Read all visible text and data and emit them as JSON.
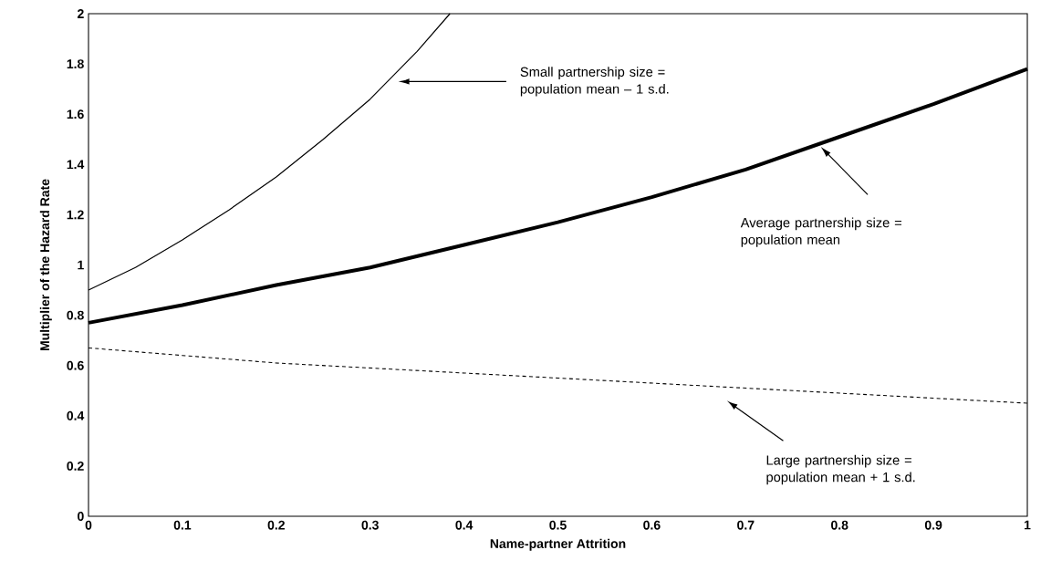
{
  "chart_data": {
    "type": "line",
    "xlabel": "Name-partner Attrition",
    "ylabel": "Multiplier of the Hazard Rate",
    "xlim": [
      0,
      1
    ],
    "ylim": [
      0,
      2
    ],
    "xticks": [
      0,
      0.1,
      0.2,
      0.3,
      0.4,
      0.5,
      0.6,
      0.7,
      0.8,
      0.9,
      1
    ],
    "yticks": [
      0,
      0.2,
      0.4,
      0.6,
      0.8,
      1,
      1.2,
      1.4,
      1.6,
      1.8,
      2
    ],
    "grid": false,
    "marker": "none",
    "series": [
      {
        "color": "#000000",
        "line_style": "solid",
        "x": [
          0,
          0.05,
          0.1,
          0.15,
          0.2,
          0.25,
          0.3,
          0.35,
          0.385
        ],
        "values": [
          0.9,
          0.99,
          1.1,
          1.22,
          1.35,
          1.5,
          1.66,
          1.85,
          2
        ]
      },
      {
        "color": "#000000",
        "line_style": "solid",
        "x": [
          0,
          0.1,
          0.2,
          0.3,
          0.4,
          0.5,
          0.6,
          0.7,
          0.8,
          0.9,
          1
        ],
        "values": [
          0.77,
          0.84,
          0.92,
          0.99,
          1.08,
          1.17,
          1.27,
          1.38,
          1.51,
          1.64,
          1.78
        ]
      },
      {
        "color": "#000000",
        "line_style": "dashed",
        "x": [
          0,
          0.1,
          0.2,
          0.3,
          0.4,
          0.5,
          0.6,
          0.7,
          0.8,
          0.9,
          1
        ],
        "values": [
          0.67,
          0.64,
          0.61,
          0.59,
          0.57,
          0.55,
          0.53,
          0.51,
          0.49,
          0.47,
          0.45
        ]
      }
    ],
    "annotations": [
      "Small partnership size = population mean – 1 s.d.",
      "Average partnership size = population mean",
      "Large partnership size = population mean + 1 s.d."
    ]
  }
}
